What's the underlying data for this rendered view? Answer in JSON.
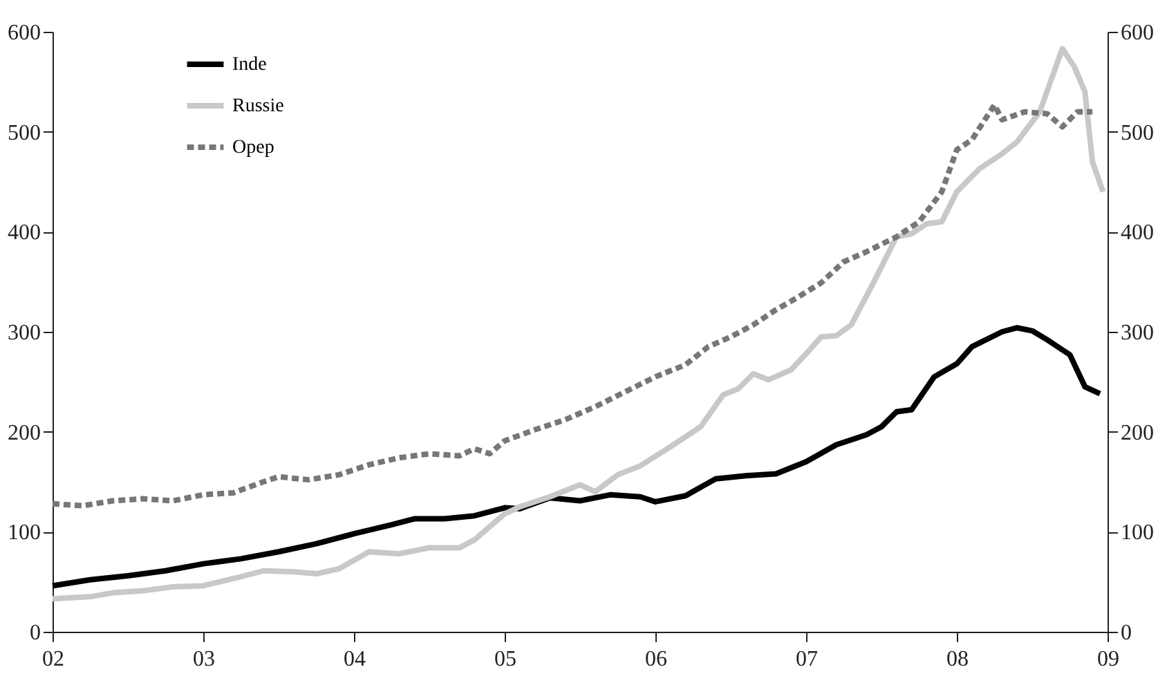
{
  "chart_data": {
    "type": "line",
    "legend": "top left",
    "grid": false,
    "marker": "none",
    "xlim": [
      2002,
      2009
    ],
    "xticks": [
      {
        "value": 2002,
        "label": "02"
      },
      {
        "value": 2003,
        "label": "03"
      },
      {
        "value": 2004,
        "label": "04"
      },
      {
        "value": 2005,
        "label": "05"
      },
      {
        "value": 2006,
        "label": "06"
      },
      {
        "value": 2007,
        "label": "07"
      },
      {
        "value": 2008,
        "label": "08"
      },
      {
        "value": 2009,
        "label": "09"
      }
    ],
    "ylim": [
      0,
      600
    ],
    "yticks": [
      0,
      100,
      200,
      300,
      400,
      500,
      600
    ],
    "y2lim": [
      0,
      600
    ],
    "y2ticks": [
      0,
      100,
      200,
      300,
      400,
      500,
      600
    ],
    "series": [
      {
        "name": "Inde",
        "color": "#000000",
        "line_style": "solid",
        "x": [
          2002.0,
          2002.25,
          2002.5,
          2002.75,
          2003.0,
          2003.1,
          2003.25,
          2003.5,
          2003.75,
          2004.0,
          2004.25,
          2004.4,
          2004.6,
          2004.8,
          2005.0,
          2005.1,
          2005.3,
          2005.5,
          2005.7,
          2005.9,
          2006.0,
          2006.2,
          2006.4,
          2006.6,
          2006.8,
          2007.0,
          2007.2,
          2007.4,
          2007.5,
          2007.6,
          2007.7,
          2007.85,
          2008.0,
          2008.1,
          2008.3,
          2008.4,
          2008.5,
          2008.6,
          2008.75,
          2008.85,
          2008.95
        ],
        "values": [
          46,
          52,
          56,
          61,
          68,
          70,
          73,
          80,
          88,
          98,
          107,
          113,
          113,
          116,
          124,
          123,
          134,
          131,
          137,
          135,
          130,
          136,
          153,
          156,
          158,
          170,
          187,
          197,
          205,
          220,
          222,
          255,
          268,
          285,
          300,
          304,
          301,
          292,
          277,
          245,
          238
        ]
      },
      {
        "name": "Russie",
        "color": "#c8c8c8",
        "line_style": "solid",
        "x": [
          2002.0,
          2002.25,
          2002.4,
          2002.6,
          2002.8,
          2003.0,
          2003.25,
          2003.4,
          2003.6,
          2003.75,
          2003.9,
          2004.1,
          2004.3,
          2004.5,
          2004.7,
          2004.8,
          2005.0,
          2005.1,
          2005.3,
          2005.5,
          2005.6,
          2005.75,
          2005.9,
          2006.1,
          2006.3,
          2006.45,
          2006.55,
          2006.65,
          2006.75,
          2006.9,
          2007.0,
          2007.1,
          2007.2,
          2007.3,
          2007.45,
          2007.6,
          2007.7,
          2007.8,
          2007.9,
          2008.0,
          2008.15,
          2008.3,
          2008.4,
          2008.55,
          2008.7,
          2008.78,
          2008.85,
          2008.9,
          2008.97
        ],
        "values": [
          33,
          35,
          39,
          41,
          45,
          46,
          55,
          61,
          60,
          58,
          63,
          80,
          78,
          84,
          84,
          92,
          118,
          125,
          135,
          147,
          140,
          157,
          166,
          185,
          205,
          237,
          243,
          258,
          252,
          262,
          278,
          295,
          296,
          307,
          350,
          395,
          398,
          408,
          410,
          440,
          463,
          478,
          490,
          520,
          583,
          565,
          540,
          470,
          440
        ]
      },
      {
        "name": "Opep",
        "color": "#777777",
        "line_style": "dashed",
        "x": [
          2002.0,
          2002.2,
          2002.4,
          2002.6,
          2002.8,
          2003.0,
          2003.2,
          2003.4,
          2003.5,
          2003.7,
          2003.9,
          2004.1,
          2004.3,
          2004.5,
          2004.7,
          2004.8,
          2004.9,
          2005.0,
          2005.2,
          2005.4,
          2005.6,
          2005.8,
          2006.0,
          2006.2,
          2006.35,
          2006.5,
          2006.65,
          2006.8,
          2006.95,
          2007.1,
          2007.25,
          2007.4,
          2007.6,
          2007.75,
          2007.9,
          2008.0,
          2008.1,
          2008.25,
          2008.3,
          2008.45,
          2008.6,
          2008.7,
          2008.8,
          2008.9
        ],
        "values": [
          128,
          126,
          131,
          133,
          131,
          137,
          139,
          150,
          155,
          152,
          157,
          167,
          174,
          178,
          176,
          183,
          178,
          191,
          202,
          212,
          225,
          240,
          255,
          267,
          285,
          295,
          307,
          322,
          335,
          349,
          370,
          380,
          395,
          410,
          440,
          482,
          492,
          527,
          512,
          520,
          518,
          505,
          520,
          520
        ]
      }
    ]
  }
}
